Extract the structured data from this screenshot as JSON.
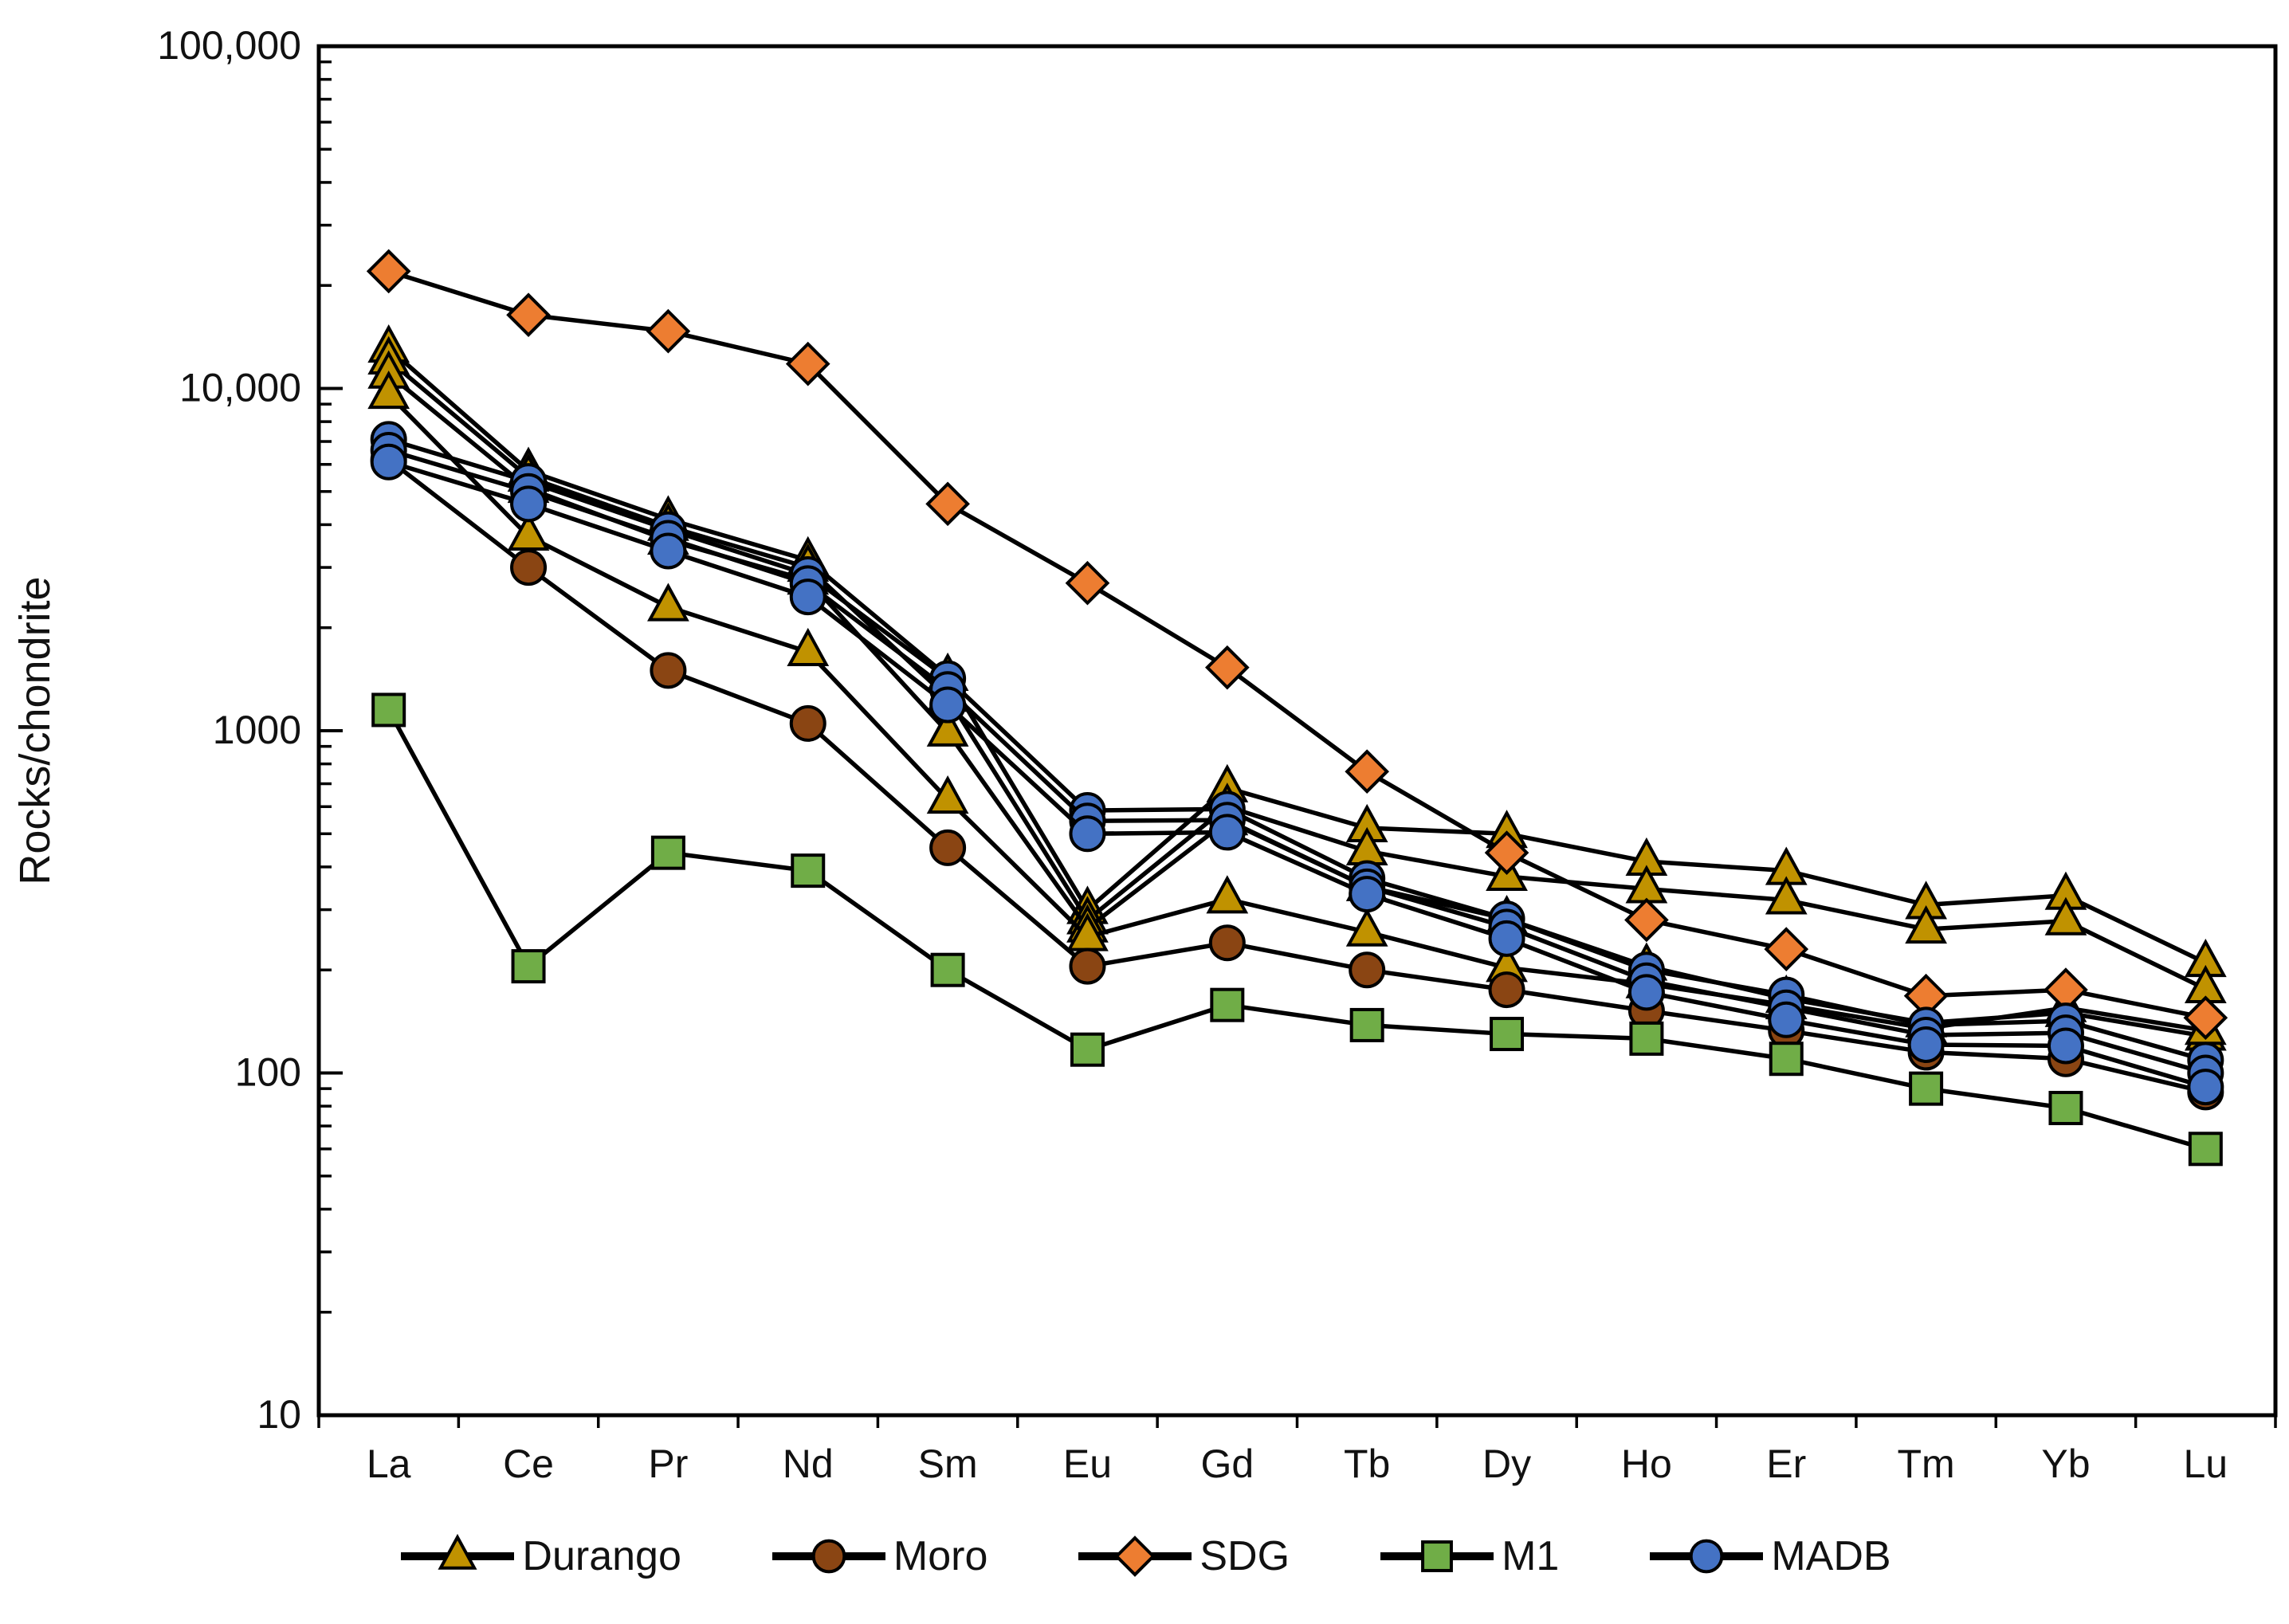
{
  "figure": {
    "y_axis_title": "Rocks/chondrite"
  },
  "chart_data": {
    "type": "line",
    "title": "",
    "xlabel": "",
    "ylabel": "Rocks/chondrite",
    "grid": false,
    "legend_position": "bottom",
    "y_axis": {
      "scale": "log",
      "min": 10,
      "max": 100000,
      "tick_values": [
        10,
        100,
        1000,
        10000,
        100000
      ],
      "tick_labels": [
        "10",
        "100",
        "1000",
        "10,000",
        "100,000"
      ]
    },
    "categories": [
      "La",
      "Ce",
      "Pr",
      "Nd",
      "Sm",
      "Eu",
      "Gd",
      "Tb",
      "Dy",
      "Ho",
      "Er",
      "Tm",
      "Yb",
      "Lu"
    ],
    "series": [
      {
        "name": "Durango",
        "marker": "triangle",
        "color": "#C09200",
        "line_color": "#000000",
        "lines": [
          [
            13100,
            5750,
            4150,
            3150,
            1440,
            300,
            680,
            520,
            500,
            415,
            390,
            310,
            330,
            210
          ],
          [
            12100,
            5500,
            3950,
            3000,
            1250,
            280,
            600,
            445,
            375,
            345,
            320,
            263,
            278,
            176
          ],
          [
            11000,
            5100,
            3600,
            2750,
            990,
            265,
            545,
            350,
            282,
            205,
            165,
            140,
            150,
            128
          ],
          [
            9600,
            3700,
            2300,
            1700,
            630,
            250,
            322,
            258,
            203,
            182,
            158,
            135,
            155,
            133
          ]
        ]
      },
      {
        "name": "Moro",
        "marker": "circle",
        "color": "#8A4513",
        "line_color": "#000000",
        "lines": [
          [
            6200,
            3000,
            1500,
            1050,
            455,
            205,
            240,
            200,
            175,
            152,
            133,
            115,
            110,
            88
          ]
        ]
      },
      {
        "name": "SDG",
        "marker": "diamond",
        "color": "#ED7D31",
        "line_color": "#000000",
        "lines": [
          [
            22000,
            16400,
            14700,
            11800,
            4600,
            2700,
            1530,
            760,
            440,
            280,
            230,
            168,
            175,
            145
          ]
        ]
      },
      {
        "name": "M1",
        "marker": "square",
        "color": "#70AD47",
        "line_color": "#000000",
        "lines": [
          [
            1150,
            205,
            440,
            390,
            200,
            117,
            158,
            138,
            130,
            126,
            110,
            90,
            79,
            60
          ]
        ]
      },
      {
        "name": "MADB",
        "marker": "circle",
        "color": "#4472C4",
        "line_color": "#000000",
        "lines": [
          [
            7100,
            5350,
            3870,
            2860,
            1420,
            585,
            590,
            370,
            282,
            200,
            169,
            138,
            142,
            109
          ],
          [
            6600,
            5000,
            3650,
            2690,
            1320,
            545,
            548,
            350,
            267,
            186,
            155,
            129,
            131,
            100
          ],
          [
            6100,
            4600,
            3350,
            2460,
            1190,
            500,
            505,
            333,
            247,
            172,
            143,
            121,
            120,
            91
          ]
        ]
      }
    ]
  }
}
